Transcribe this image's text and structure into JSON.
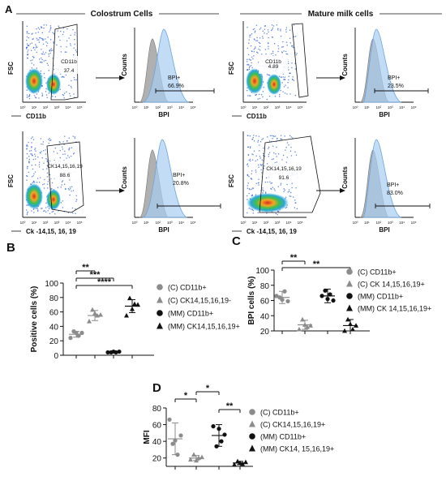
{
  "panel_a": {
    "letter": "A",
    "section_colostrum": "Colostrum Cells",
    "section_mature": "Mature milk cells",
    "plots": [
      {
        "ylabel": "FSC",
        "xlabel": "CD11b",
        "gate_name": "CD11b",
        "gate_value": "37.4",
        "hist_ylabel": "Counts",
        "hist_xlabel": "BPI",
        "bpi_label": "BPI+",
        "bpi_value": "66.9%"
      },
      {
        "ylabel": "FSC",
        "xlabel": "CD11b",
        "gate_name": "CD11b",
        "gate_value": "4.89",
        "hist_ylabel": "Counts",
        "hist_xlabel": "BPI",
        "bpi_label": "BPI+",
        "bpi_value": "23.5%"
      },
      {
        "ylabel": "FSC",
        "xlabel": "Ck -14,15, 16, 19",
        "gate_name": "CK14,15,16,19",
        "gate_value": "88.6",
        "hist_ylabel": "Counts",
        "hist_xlabel": "BPI",
        "bpi_label": "BPI+",
        "bpi_value": "20.8%"
      },
      {
        "ylabel": "FSC",
        "xlabel": "Ck -14,15, 16, 19",
        "gate_name": "CK14,15,16,19",
        "gate_value": "91.6",
        "hist_ylabel": "Counts",
        "hist_xlabel": "BPI",
        "bpi_label": "BPI+",
        "bpi_value": "83.0%"
      }
    ],
    "flow_ticks": [
      "10⁰",
      "10¹",
      "10²",
      "10³",
      "10⁴",
      "10⁵"
    ]
  },
  "chart_data": [
    {
      "type": "scatter",
      "panel": "B",
      "ylabel": "Positive cells (%)",
      "ylim": [
        0,
        100
      ],
      "yticks": [
        "0",
        "20",
        "40",
        "60",
        "80",
        "100"
      ],
      "series": [
        {
          "name": "(C) CD11b+",
          "marker": "circle",
          "color": "#8c8c8c",
          "values": [
            24,
            31,
            33,
            27,
            31
          ],
          "mean": 29,
          "sd": 4
        },
        {
          "name": "(C) CK14,15,16,19-",
          "marker": "triangle",
          "color": "#8c8c8c",
          "values": [
            47,
            56,
            63,
            55,
            58
          ],
          "mean": 55,
          "sd": 7
        },
        {
          "name": "(MM) CD11b+",
          "marker": "circle",
          "color": "#111111",
          "values": [
            4,
            5,
            4,
            4,
            5
          ],
          "mean": 4,
          "sd": 0.5
        },
        {
          "name": "(MM) CK14,15,16,19+",
          "marker": "triangle",
          "color": "#111111",
          "values": [
            55,
            70,
            79,
            71,
            64
          ],
          "mean": 68,
          "sd": 9
        }
      ],
      "significance": [
        {
          "from": 0,
          "to": 1,
          "label": "**"
        },
        {
          "from": 0,
          "to": 2,
          "label": "***"
        },
        {
          "from": 0,
          "to": 3,
          "label": "****"
        }
      ]
    },
    {
      "type": "scatter",
      "panel": "C",
      "ylabel": "BPI cells (%)",
      "ylim": [
        20,
        100
      ],
      "yticks": [
        "20",
        "40",
        "60",
        "80",
        "100"
      ],
      "series": [
        {
          "name": "(C) CD11b+",
          "marker": "circle",
          "color": "#8c8c8c",
          "values": [
            66,
            59,
            64,
            72,
            61
          ],
          "mean": 64,
          "sd": 8
        },
        {
          "name": "(C) CK 14,15,16,19+",
          "marker": "triangle",
          "color": "#8c8c8c",
          "values": [
            22,
            27,
            35,
            25,
            28
          ],
          "mean": 28,
          "sd": 6
        },
        {
          "name": "(MM) CD11b+",
          "marker": "circle",
          "color": "#111111",
          "values": [
            66,
            60,
            73,
            68,
            62
          ],
          "mean": 66,
          "sd": 9
        },
        {
          "name": "(MM) CK 14,15,16,19+",
          "marker": "triangle",
          "color": "#111111",
          "values": [
            20,
            27,
            35,
            22,
            29
          ],
          "mean": 27,
          "sd": 8
        }
      ],
      "significance": [
        {
          "from": 0,
          "to": 1,
          "label": "**"
        },
        {
          "from": 0,
          "to": 3,
          "label": "**"
        }
      ]
    },
    {
      "type": "scatter",
      "panel": "D",
      "ylabel": "MFI",
      "ylim": [
        10,
        80
      ],
      "yticks": [
        "20",
        "40",
        "60",
        "80"
      ],
      "series": [
        {
          "name": "(C) CD11b+",
          "marker": "circle",
          "color": "#8c8c8c",
          "values": [
            66,
            47,
            37,
            24,
            41
          ],
          "mean": 43,
          "sd": 19
        },
        {
          "name": "(C) CK14,15,16,19+",
          "marker": "triangle",
          "color": "#8c8c8c",
          "values": [
            18,
            21,
            24,
            20,
            17
          ],
          "mean": 20,
          "sd": 3
        },
        {
          "name": "(MM) CD11b+",
          "marker": "circle",
          "color": "#111111",
          "values": [
            58,
            48,
            34,
            40,
            55
          ],
          "mean": 47,
          "sd": 13
        },
        {
          "name": "(MM) CK14, 15,16,19+",
          "marker": "triangle",
          "color": "#111111",
          "values": [
            12,
            15,
            16,
            13,
            14
          ],
          "mean": 14,
          "sd": 2
        }
      ],
      "significance": [
        {
          "from": 0,
          "to": 1,
          "label": "*"
        },
        {
          "from": 1,
          "to": 2,
          "label": "*"
        },
        {
          "from": 2,
          "to": 3,
          "label": "**"
        }
      ]
    }
  ]
}
